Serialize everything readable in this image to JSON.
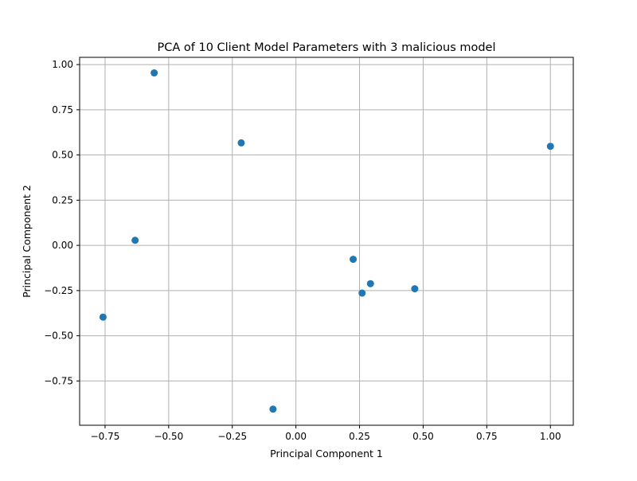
{
  "chart_data": {
    "type": "scatter",
    "title": "PCA of 10 Client Model Parameters with 3 malicious model",
    "xlabel": "Principal Component 1",
    "ylabel": "Principal Component 2",
    "xlim": [
      -0.85,
      1.09
    ],
    "ylim": [
      -0.995,
      1.04
    ],
    "xticks": [
      -0.75,
      -0.5,
      -0.25,
      0.0,
      0.25,
      0.5,
      0.75,
      1.0
    ],
    "xtick_labels": [
      "−0.75",
      "−0.50",
      "−0.25",
      "0.00",
      "0.25",
      "0.50",
      "0.75",
      "1.00"
    ],
    "yticks": [
      -0.75,
      -0.5,
      -0.25,
      0.0,
      0.25,
      0.5,
      0.75,
      1.0
    ],
    "ytick_labels": [
      "−0.75",
      "−0.50",
      "−0.25",
      "0.00",
      "0.25",
      "0.50",
      "0.75",
      "1.00"
    ],
    "grid": true,
    "marker_color": "#1f77b4",
    "points": [
      {
        "x": -0.557,
        "y": 0.954
      },
      {
        "x": -0.215,
        "y": 0.567
      },
      {
        "x": 1.0,
        "y": 0.548
      },
      {
        "x": -0.632,
        "y": 0.028
      },
      {
        "x": -0.758,
        "y": -0.397
      },
      {
        "x": 0.225,
        "y": -0.077
      },
      {
        "x": 0.293,
        "y": -0.212
      },
      {
        "x": 0.26,
        "y": -0.264
      },
      {
        "x": 0.467,
        "y": -0.24
      },
      {
        "x": -0.09,
        "y": -0.906
      }
    ]
  }
}
